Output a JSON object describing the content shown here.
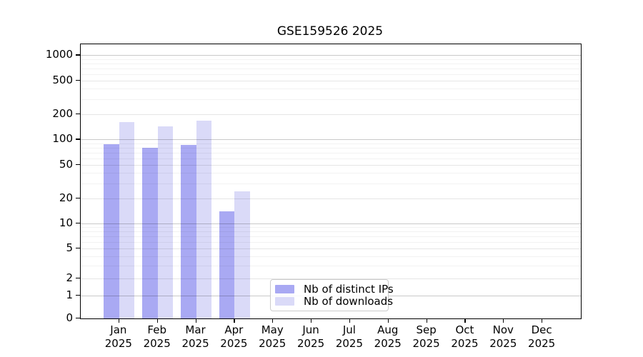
{
  "chart_data": {
    "type": "bar",
    "title": "GSE159526 2025",
    "x_tick_months": [
      "Jan",
      "Feb",
      "Mar",
      "Apr",
      "May",
      "Jun",
      "Jul",
      "Aug",
      "Sep",
      "Oct",
      "Nov",
      "Dec"
    ],
    "x_tick_year": "2025",
    "series": [
      {
        "name": "Nb of distinct IPs",
        "color": "#a9a9f3",
        "values": [
          88,
          79,
          86,
          14,
          null,
          null,
          null,
          null,
          null,
          null,
          null,
          null
        ]
      },
      {
        "name": "Nb of downloads",
        "color": "#dadaf8",
        "values": [
          160,
          142,
          168,
          24,
          null,
          null,
          null,
          null,
          null,
          null,
          null,
          null
        ]
      }
    ],
    "y_ticks": [
      0,
      1,
      2,
      5,
      10,
      20,
      50,
      100,
      200,
      500,
      1000
    ],
    "y_scale": "asinh (log-like, linear near zero)",
    "ylim": [
      0,
      1350
    ],
    "grid": true,
    "legend_position": "lower center, inside plot",
    "colors": {
      "grid_major": "rgba(0,0,0,0.21)",
      "grid_mid": "rgba(0,0,0,0.10)",
      "grid_minor": "rgba(0,0,0,0.05)",
      "spine": "#000000",
      "background": "#ffffff"
    }
  }
}
